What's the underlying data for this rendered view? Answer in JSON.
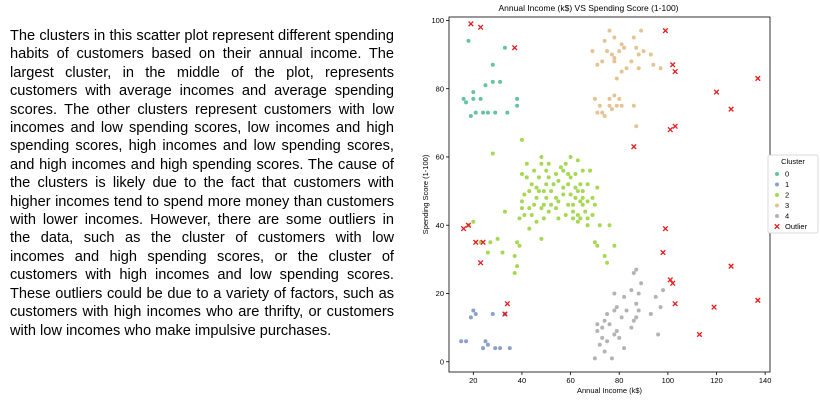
{
  "description_text": "The clusters in this scatter plot represent different spending habits of customers based on their annual income. The largest cluster, in the middle of the plot, represents customers with average incomes and average spending scores. The other clusters represent customers with low incomes and low spending scores, low incomes and high spending scores, high incomes and low spending scores, and high incomes and high spending scores. The cause of the clusters is likely due to the fact that customers with higher incomes tend to spend more money than customers with lower incomes. However, there are some outliers in the data, such as the cluster of customers with low incomes and high spending scores, or the cluster of customers with high incomes and low spending scores. These outliers could be due to a variety of factors, such as customers with high incomes who are thrifty, or customers with low incomes who make impulsive purchases.",
  "chart_data": {
    "type": "scatter",
    "title": "Annual Income (k$) VS Spending Score (1-100)",
    "xlabel": "Annual Income (k$)",
    "ylabel": "Spending Score (1-100)",
    "xlim": [
      10,
      142
    ],
    "ylim": [
      -3,
      101
    ],
    "xticks": [
      20,
      40,
      60,
      80,
      100,
      120,
      140
    ],
    "yticks": [
      0,
      20,
      40,
      60,
      80,
      100
    ],
    "grid": false,
    "legend": {
      "title": "Cluster",
      "placement": "outside-right"
    },
    "series": [
      {
        "name": "0",
        "color": "#66c2a5",
        "marker": "dot",
        "points": [
          [
            16,
            77
          ],
          [
            17,
            76
          ],
          [
            18,
            94
          ],
          [
            19,
            72
          ],
          [
            20,
            77
          ],
          [
            20,
            79
          ],
          [
            21,
            73
          ],
          [
            23,
            77
          ],
          [
            24,
            73
          ],
          [
            25,
            81
          ],
          [
            26,
            73
          ],
          [
            28,
            82
          ],
          [
            28,
            87
          ],
          [
            29,
            73
          ],
          [
            31,
            82
          ],
          [
            33,
            92
          ],
          [
            34,
            73
          ],
          [
            38,
            75
          ],
          [
            38,
            77
          ]
        ]
      },
      {
        "name": "1",
        "color": "#8da0cb",
        "marker": "dot",
        "points": [
          [
            15,
            6
          ],
          [
            17,
            6
          ],
          [
            19,
            13
          ],
          [
            20,
            15
          ],
          [
            21,
            14
          ],
          [
            24,
            4
          ],
          [
            25,
            6
          ],
          [
            26,
            5
          ],
          [
            28,
            14
          ],
          [
            29,
            4
          ],
          [
            31,
            4
          ],
          [
            33,
            14
          ],
          [
            35,
            4
          ]
        ]
      },
      {
        "name": "2",
        "color": "#a6d854",
        "marker": "dot",
        "points": [
          [
            18,
            40
          ],
          [
            20,
            41
          ],
          [
            23,
            35
          ],
          [
            26,
            32
          ],
          [
            27,
            35
          ],
          [
            28,
            61
          ],
          [
            30,
            36
          ],
          [
            32,
            32
          ],
          [
            33,
            44
          ],
          [
            37,
            26
          ],
          [
            37,
            31
          ],
          [
            38,
            28
          ],
          [
            38,
            35
          ],
          [
            39,
            34
          ],
          [
            39,
            42
          ],
          [
            40,
            45
          ],
          [
            40,
            47
          ],
          [
            40,
            55
          ],
          [
            40,
            65
          ],
          [
            41,
            43
          ],
          [
            41,
            49
          ],
          [
            42,
            54
          ],
          [
            42,
            58
          ],
          [
            43,
            39
          ],
          [
            43,
            45
          ],
          [
            43,
            50
          ],
          [
            44,
            43
          ],
          [
            44,
            52
          ],
          [
            45,
            46
          ],
          [
            45,
            56
          ],
          [
            46,
            41
          ],
          [
            46,
            48
          ],
          [
            46,
            51
          ],
          [
            47,
            50
          ],
          [
            47,
            54
          ],
          [
            48,
            36
          ],
          [
            48,
            45
          ],
          [
            48,
            58
          ],
          [
            48,
            60
          ],
          [
            49,
            42
          ],
          [
            49,
            46
          ],
          [
            49,
            50
          ],
          [
            50,
            48
          ],
          [
            50,
            52
          ],
          [
            50,
            56
          ],
          [
            51,
            44
          ],
          [
            51,
            54
          ],
          [
            51,
            58
          ],
          [
            52,
            46
          ],
          [
            52,
            50
          ],
          [
            53,
            52
          ],
          [
            54,
            45
          ],
          [
            54,
            48
          ],
          [
            54,
            55
          ],
          [
            55,
            42
          ],
          [
            55,
            47
          ],
          [
            55,
            53
          ],
          [
            56,
            57
          ],
          [
            57,
            49
          ],
          [
            57,
            51
          ],
          [
            57,
            56
          ],
          [
            58,
            43
          ],
          [
            58,
            58
          ],
          [
            59,
            46
          ],
          [
            59,
            52
          ],
          [
            59,
            55
          ],
          [
            60,
            49
          ],
          [
            60,
            54
          ],
          [
            60,
            60
          ],
          [
            61,
            42
          ],
          [
            61,
            44
          ],
          [
            61,
            46
          ],
          [
            62,
            48
          ],
          [
            62,
            51
          ],
          [
            62,
            55
          ],
          [
            63,
            41
          ],
          [
            63,
            43
          ],
          [
            63,
            50
          ],
          [
            63,
            59
          ],
          [
            64,
            42
          ],
          [
            64,
            47
          ],
          [
            64,
            52
          ],
          [
            65,
            46
          ],
          [
            65,
            48
          ],
          [
            65,
            50
          ],
          [
            65,
            56
          ],
          [
            66,
            44
          ],
          [
            67,
            40
          ],
          [
            67,
            42
          ],
          [
            67,
            47
          ],
          [
            67,
            52
          ],
          [
            68,
            56
          ],
          [
            69,
            43
          ],
          [
            69,
            48
          ],
          [
            70,
            35
          ],
          [
            70,
            46
          ],
          [
            71,
            34
          ],
          [
            71,
            51
          ],
          [
            72,
            40
          ],
          [
            74,
            31
          ],
          [
            75,
            29
          ],
          [
            76,
            40
          ],
          [
            78,
            34
          ]
        ]
      },
      {
        "name": "3",
        "color": "#e5c494",
        "marker": "dot",
        "points": [
          [
            69,
            91
          ],
          [
            70,
            77
          ],
          [
            71,
            73
          ],
          [
            71,
            87
          ],
          [
            72,
            75
          ],
          [
            73,
            73
          ],
          [
            73,
            88
          ],
          [
            74,
            72
          ],
          [
            74,
            94
          ],
          [
            75,
            91
          ],
          [
            76,
            75
          ],
          [
            76,
            77
          ],
          [
            76,
            97
          ],
          [
            77,
            74
          ],
          [
            77,
            90
          ],
          [
            78,
            88
          ],
          [
            78,
            95
          ],
          [
            78,
            78
          ],
          [
            78,
            89
          ],
          [
            79,
            75
          ],
          [
            79,
            83
          ],
          [
            80,
            91
          ],
          [
            80,
            77
          ],
          [
            81,
            93
          ],
          [
            81,
            75
          ],
          [
            81,
            85
          ],
          [
            82,
            92
          ],
          [
            83,
            86
          ],
          [
            85,
            88
          ],
          [
            86,
            95
          ],
          [
            86,
            75
          ],
          [
            87,
            69
          ],
          [
            87,
            92
          ],
          [
            88,
            86
          ],
          [
            88,
            90
          ],
          [
            89,
            97
          ],
          [
            90,
            91
          ],
          [
            93,
            90
          ],
          [
            94,
            87
          ],
          [
            97,
            86
          ]
        ]
      },
      {
        "name": "4",
        "color": "#b3b3b3",
        "marker": "dot",
        "points": [
          [
            70,
            1
          ],
          [
            71,
            11
          ],
          [
            71,
            9
          ],
          [
            72,
            5
          ],
          [
            73,
            7
          ],
          [
            73,
            10
          ],
          [
            74,
            3
          ],
          [
            74,
            12
          ],
          [
            75,
            6
          ],
          [
            75,
            14
          ],
          [
            76,
            11
          ],
          [
            77,
            1
          ],
          [
            78,
            8
          ],
          [
            78,
            15
          ],
          [
            78,
            20
          ],
          [
            79,
            9
          ],
          [
            79,
            16
          ],
          [
            80,
            7
          ],
          [
            81,
            13
          ],
          [
            82,
            4
          ],
          [
            82,
            19
          ],
          [
            83,
            15
          ],
          [
            85,
            10
          ],
          [
            85,
            21
          ],
          [
            86,
            12
          ],
          [
            86,
            26
          ],
          [
            87,
            17
          ],
          [
            87,
            13
          ],
          [
            87,
            27
          ],
          [
            88,
            15
          ],
          [
            88,
            20
          ],
          [
            89,
            23
          ],
          [
            93,
            14
          ],
          [
            95,
            19
          ],
          [
            96,
            8
          ],
          [
            97,
            16
          ],
          [
            98,
            21
          ]
        ]
      },
      {
        "name": "Outlier",
        "color": "#e41a1c",
        "marker": "x",
        "points": [
          [
            16,
            39
          ],
          [
            18,
            40
          ],
          [
            19,
            99
          ],
          [
            21,
            35
          ],
          [
            23,
            98
          ],
          [
            23,
            29
          ],
          [
            24,
            35
          ],
          [
            33,
            14
          ],
          [
            34,
            17
          ],
          [
            37,
            92
          ],
          [
            86,
            63
          ],
          [
            98,
            32
          ],
          [
            99,
            97
          ],
          [
            99,
            39
          ],
          [
            101,
            24
          ],
          [
            101,
            68
          ],
          [
            102,
            87
          ],
          [
            102,
            23
          ],
          [
            103,
            17
          ],
          [
            103,
            69
          ],
          [
            103,
            85
          ],
          [
            113,
            8
          ],
          [
            119,
            16
          ],
          [
            120,
            79
          ],
          [
            126,
            74
          ],
          [
            126,
            28
          ],
          [
            137,
            18
          ],
          [
            137,
            83
          ]
        ]
      }
    ]
  }
}
